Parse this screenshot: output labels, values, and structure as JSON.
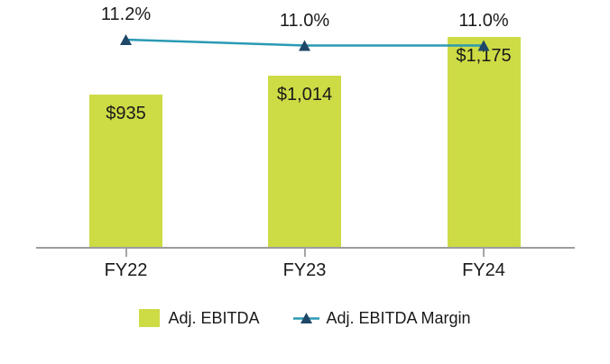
{
  "chart_data": {
    "type": "bar",
    "subtype": "combo-bar-line",
    "categories": [
      "FY22",
      "FY23",
      "FY24"
    ],
    "series": [
      {
        "name": "Adj. EBITDA",
        "type": "bar",
        "values": [
          935,
          1014,
          1175
        ],
        "data_labels": [
          "$935",
          "$1,014",
          "$1,175"
        ],
        "color": "#CDDB45"
      },
      {
        "name": "Adj. EBITDA Margin",
        "type": "line",
        "values": [
          11.2,
          11.0,
          11.0
        ],
        "data_labels": [
          "11.2%",
          "11.0%",
          "11.0%"
        ],
        "line_color": "#2A9AB4",
        "marker_color": "#1F4767",
        "marker_shape": "triangle-up"
      }
    ],
    "title": "",
    "xlabel": "",
    "ylabel": "",
    "ylim_bar": [
      300,
      1300
    ],
    "grid": false,
    "legend_position": "bottom",
    "axis_color": "#A6A6A6",
    "text_color": "#1A1A1A",
    "background": "#FFFFFF"
  }
}
